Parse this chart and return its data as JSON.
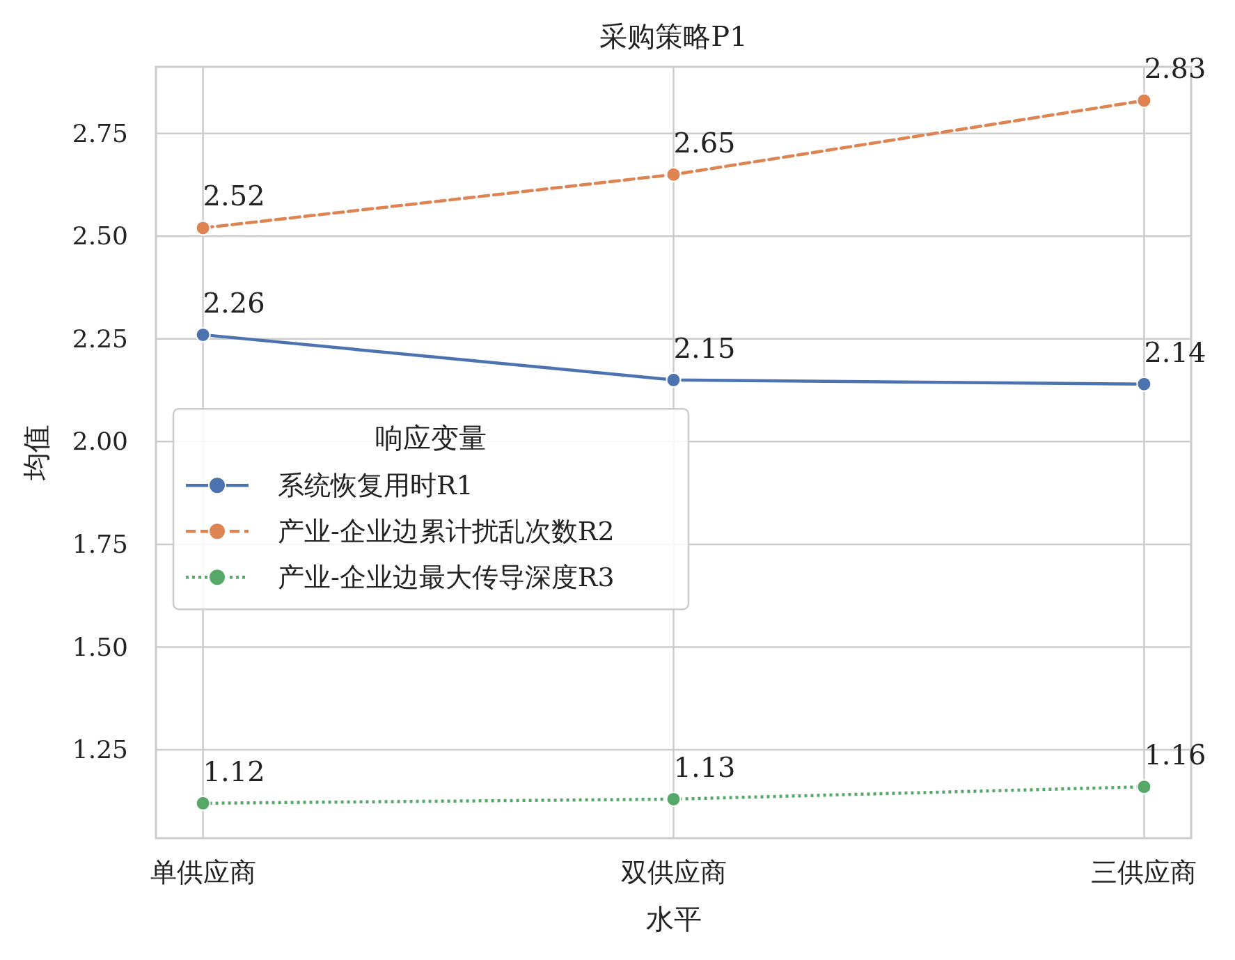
{
  "chart_data": {
    "type": "line",
    "title": "采购策略P1",
    "xlabel": "水平",
    "ylabel": "均值",
    "legend_title": "响应变量",
    "categories": [
      "单供应商",
      "双供应商",
      "三供应商"
    ],
    "series": [
      {
        "name": "系统恢复用时R1",
        "color": "#4c72b0",
        "line_style": "solid",
        "values": [
          2.26,
          2.15,
          2.14
        ]
      },
      {
        "name": "产业-企业边累计扰乱次数R2",
        "color": "#dd8452",
        "line_style": "dashed",
        "values": [
          2.52,
          2.65,
          2.83
        ]
      },
      {
        "name": "产业-企业边最大传导深度R3",
        "color": "#55a868",
        "line_style": "dotted",
        "values": [
          1.12,
          1.13,
          1.16
        ]
      }
    ],
    "ylim": [
      1.035,
      2.912
    ],
    "yticks": [
      1.25,
      {
        "value": 1.5,
        "label": "1.50"
      },
      1.75,
      {
        "value": 2,
        "label": "2.00"
      },
      2.25,
      {
        "value": 2.5,
        "label": "2.50"
      },
      2.75
    ],
    "grid": true,
    "legend": "left",
    "marker": "circle",
    "data_labels": true
  }
}
